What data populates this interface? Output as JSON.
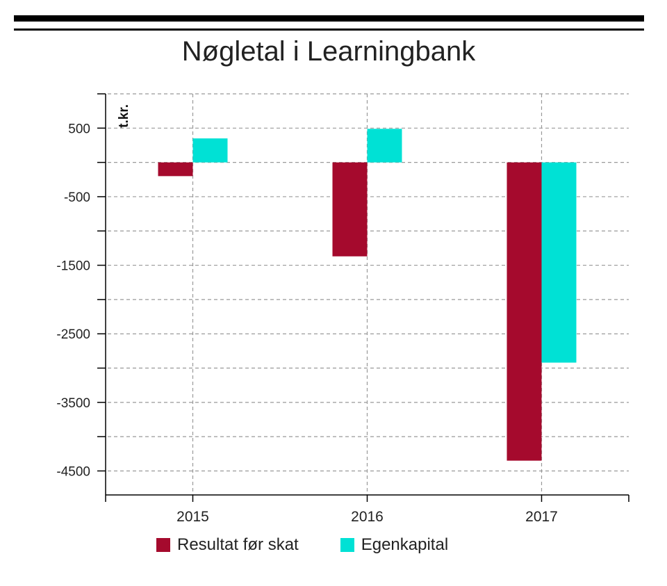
{
  "title": "Nøgletal i Learningbank",
  "chart_data": {
    "type": "bar",
    "title": "Nøgletal i Learningbank",
    "ylabel": "t.kr.",
    "xlabel": "",
    "categories": [
      "2015",
      "2016",
      "2017"
    ],
    "series": [
      {
        "name": "Resultat før skat",
        "color": "#a50a2d",
        "values": [
          -200,
          -1370,
          -4350
        ]
      },
      {
        "name": "Egenkapital",
        "color": "#00e1d5",
        "values": [
          350,
          490,
          -2920
        ]
      }
    ],
    "ylim": [
      -4850,
      1000
    ],
    "yticks": [
      500,
      -500,
      -1500,
      -2500,
      -3500,
      -4500
    ],
    "grid": true,
    "legend": "bottom"
  }
}
